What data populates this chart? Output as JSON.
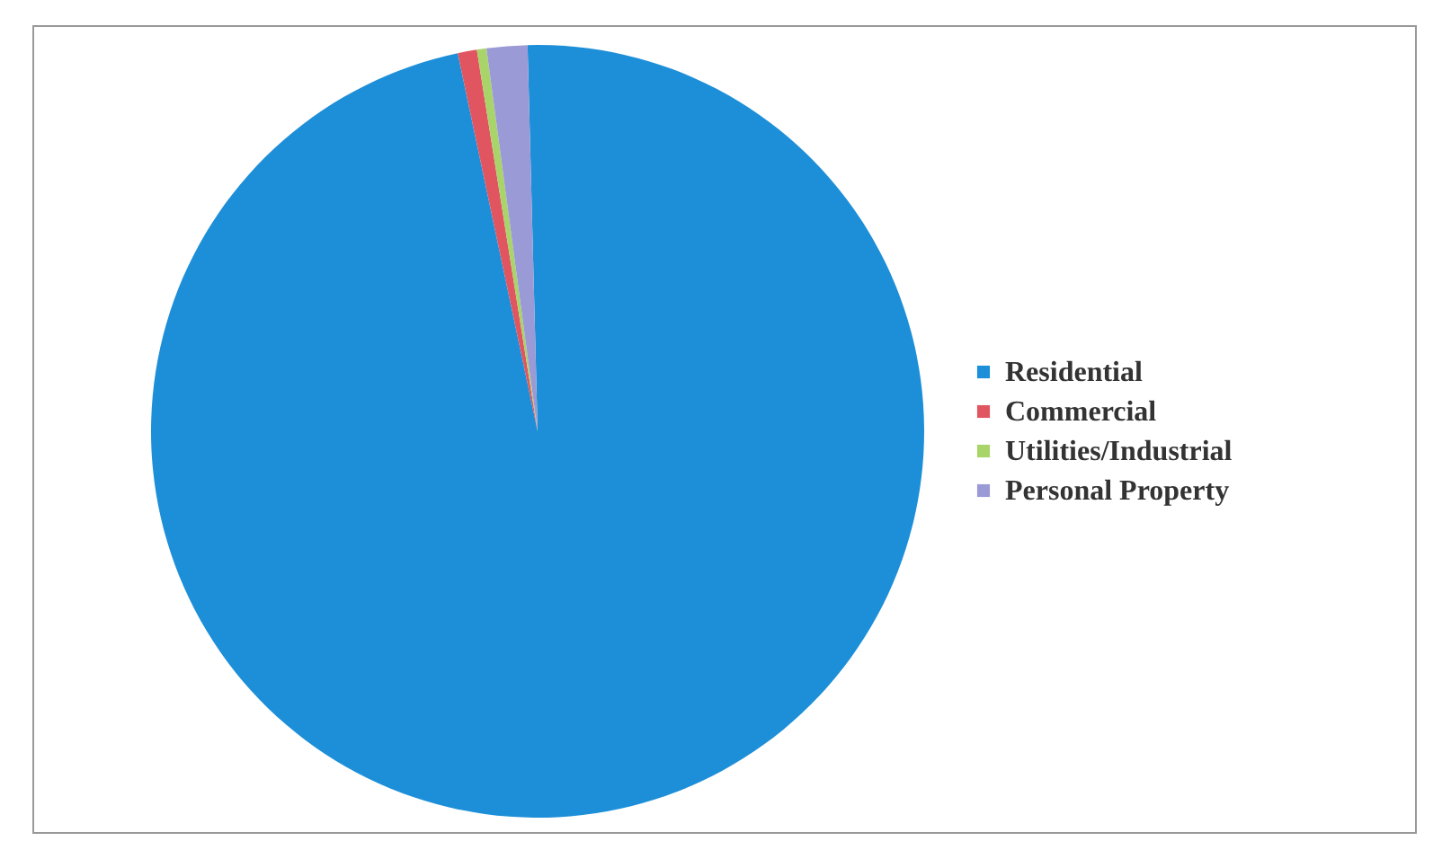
{
  "chart_data": {
    "type": "pie",
    "categories": [
      "Residential",
      "Commercial",
      "Utilities/Industrial",
      "Personal Property"
    ],
    "values": [
      97.1,
      0.8,
      0.4,
      1.7
    ],
    "colors": [
      "#1d8fd8",
      "#e05560",
      "#a9d46a",
      "#9a9ad6"
    ],
    "legend": "right"
  }
}
